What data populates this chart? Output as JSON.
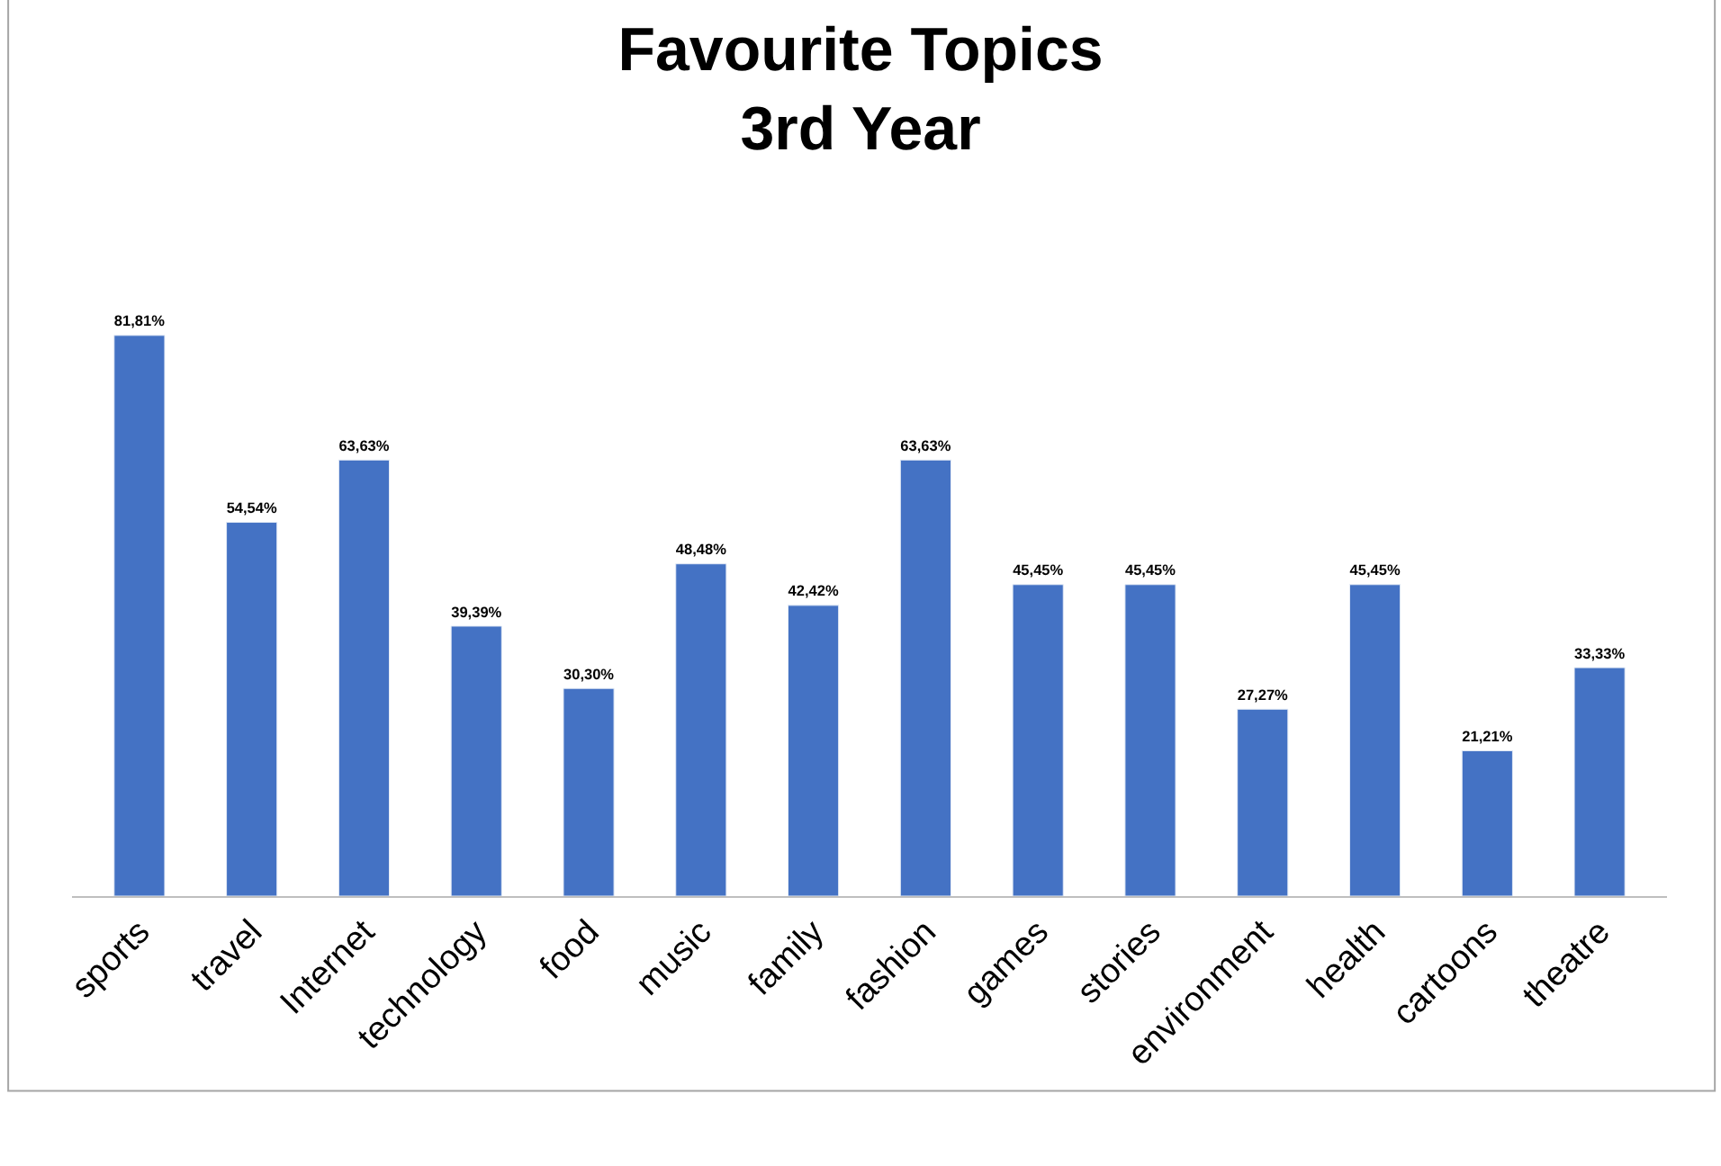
{
  "chart_data": {
    "type": "bar",
    "title": "Favourite Topics\n3rd Year",
    "categories": [
      "sports",
      "travel",
      "Internet",
      "technology",
      "food",
      "music",
      "family",
      "fashion",
      "games",
      "stories",
      "environment",
      "health",
      "cartoons",
      "theatre"
    ],
    "values": [
      81.81,
      54.54,
      63.63,
      39.39,
      30.3,
      48.48,
      42.42,
      63.63,
      45.45,
      45.45,
      27.27,
      45.45,
      21.21,
      33.33
    ],
    "value_labels": [
      "81,81%",
      "54,54%",
      "63,63%",
      "39,39%",
      "30,30%",
      "48,48%",
      "42,42%",
      "63,63%",
      "45,45%",
      "45,45%",
      "27,27%",
      "45,45%",
      "21,21%",
      "33,33%"
    ],
    "color": "#4472c4"
  }
}
